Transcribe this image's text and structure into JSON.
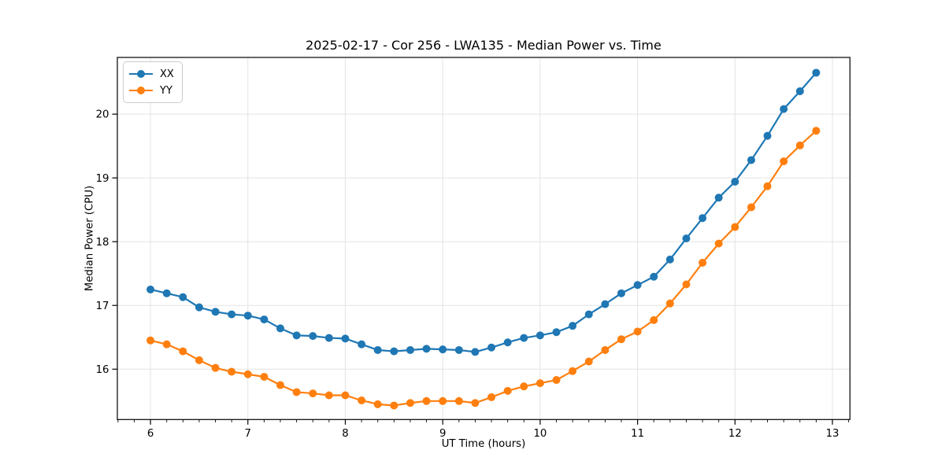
{
  "chart_data": {
    "type": "line",
    "title": "2025-02-17 - Cor 256 - LWA135 - Median Power vs. Time",
    "xlabel": "UT Time (hours)",
    "ylabel": "Median Power (CPU)",
    "xlim": [
      5.66,
      13.18
    ],
    "ylim": [
      15.21,
      20.89
    ],
    "xticks": [
      6,
      7,
      8,
      9,
      10,
      11,
      12,
      13
    ],
    "yticks": [
      16,
      17,
      18,
      19,
      20
    ],
    "x_minor_interval_hours": 0.167,
    "grid": true,
    "legend_position": "upper-left",
    "x": [
      6.0,
      6.167,
      6.333,
      6.5,
      6.667,
      6.833,
      7.0,
      7.167,
      7.333,
      7.5,
      7.667,
      7.833,
      8.0,
      8.167,
      8.333,
      8.5,
      8.667,
      8.833,
      9.0,
      9.167,
      9.333,
      9.5,
      9.667,
      9.833,
      10.0,
      10.167,
      10.333,
      10.5,
      10.667,
      10.833,
      11.0,
      11.167,
      11.333,
      11.5,
      11.667,
      11.833,
      12.0,
      12.167,
      12.333,
      12.5,
      12.667,
      12.833
    ],
    "series": [
      {
        "name": "XX",
        "color": "#1f77b4",
        "values": [
          17.25,
          17.19,
          17.13,
          16.97,
          16.9,
          16.86,
          16.84,
          16.78,
          16.64,
          16.53,
          16.52,
          16.49,
          16.48,
          16.39,
          16.3,
          16.28,
          16.3,
          16.32,
          16.31,
          16.3,
          16.27,
          16.34,
          16.42,
          16.49,
          16.53,
          16.58,
          16.68,
          16.86,
          17.02,
          17.19,
          17.32,
          17.45,
          17.72,
          18.05,
          18.37,
          18.69,
          18.94,
          19.28,
          19.66,
          20.08,
          20.36,
          20.65
        ]
      },
      {
        "name": "YY",
        "color": "#ff7f0e",
        "values": [
          16.45,
          16.39,
          16.28,
          16.14,
          16.02,
          15.96,
          15.92,
          15.88,
          15.75,
          15.64,
          15.62,
          15.59,
          15.59,
          15.51,
          15.45,
          15.43,
          15.47,
          15.5,
          15.5,
          15.5,
          15.47,
          15.56,
          15.66,
          15.73,
          15.78,
          15.83,
          15.97,
          16.12,
          16.3,
          16.47,
          16.59,
          16.77,
          17.03,
          17.33,
          17.67,
          17.97,
          18.23,
          18.54,
          18.87,
          19.26,
          19.51,
          19.74
        ]
      }
    ],
    "style": {
      "grid_color": "#e3e3e3",
      "spine_color": "#000000",
      "tick_color": "#000000"
    }
  }
}
